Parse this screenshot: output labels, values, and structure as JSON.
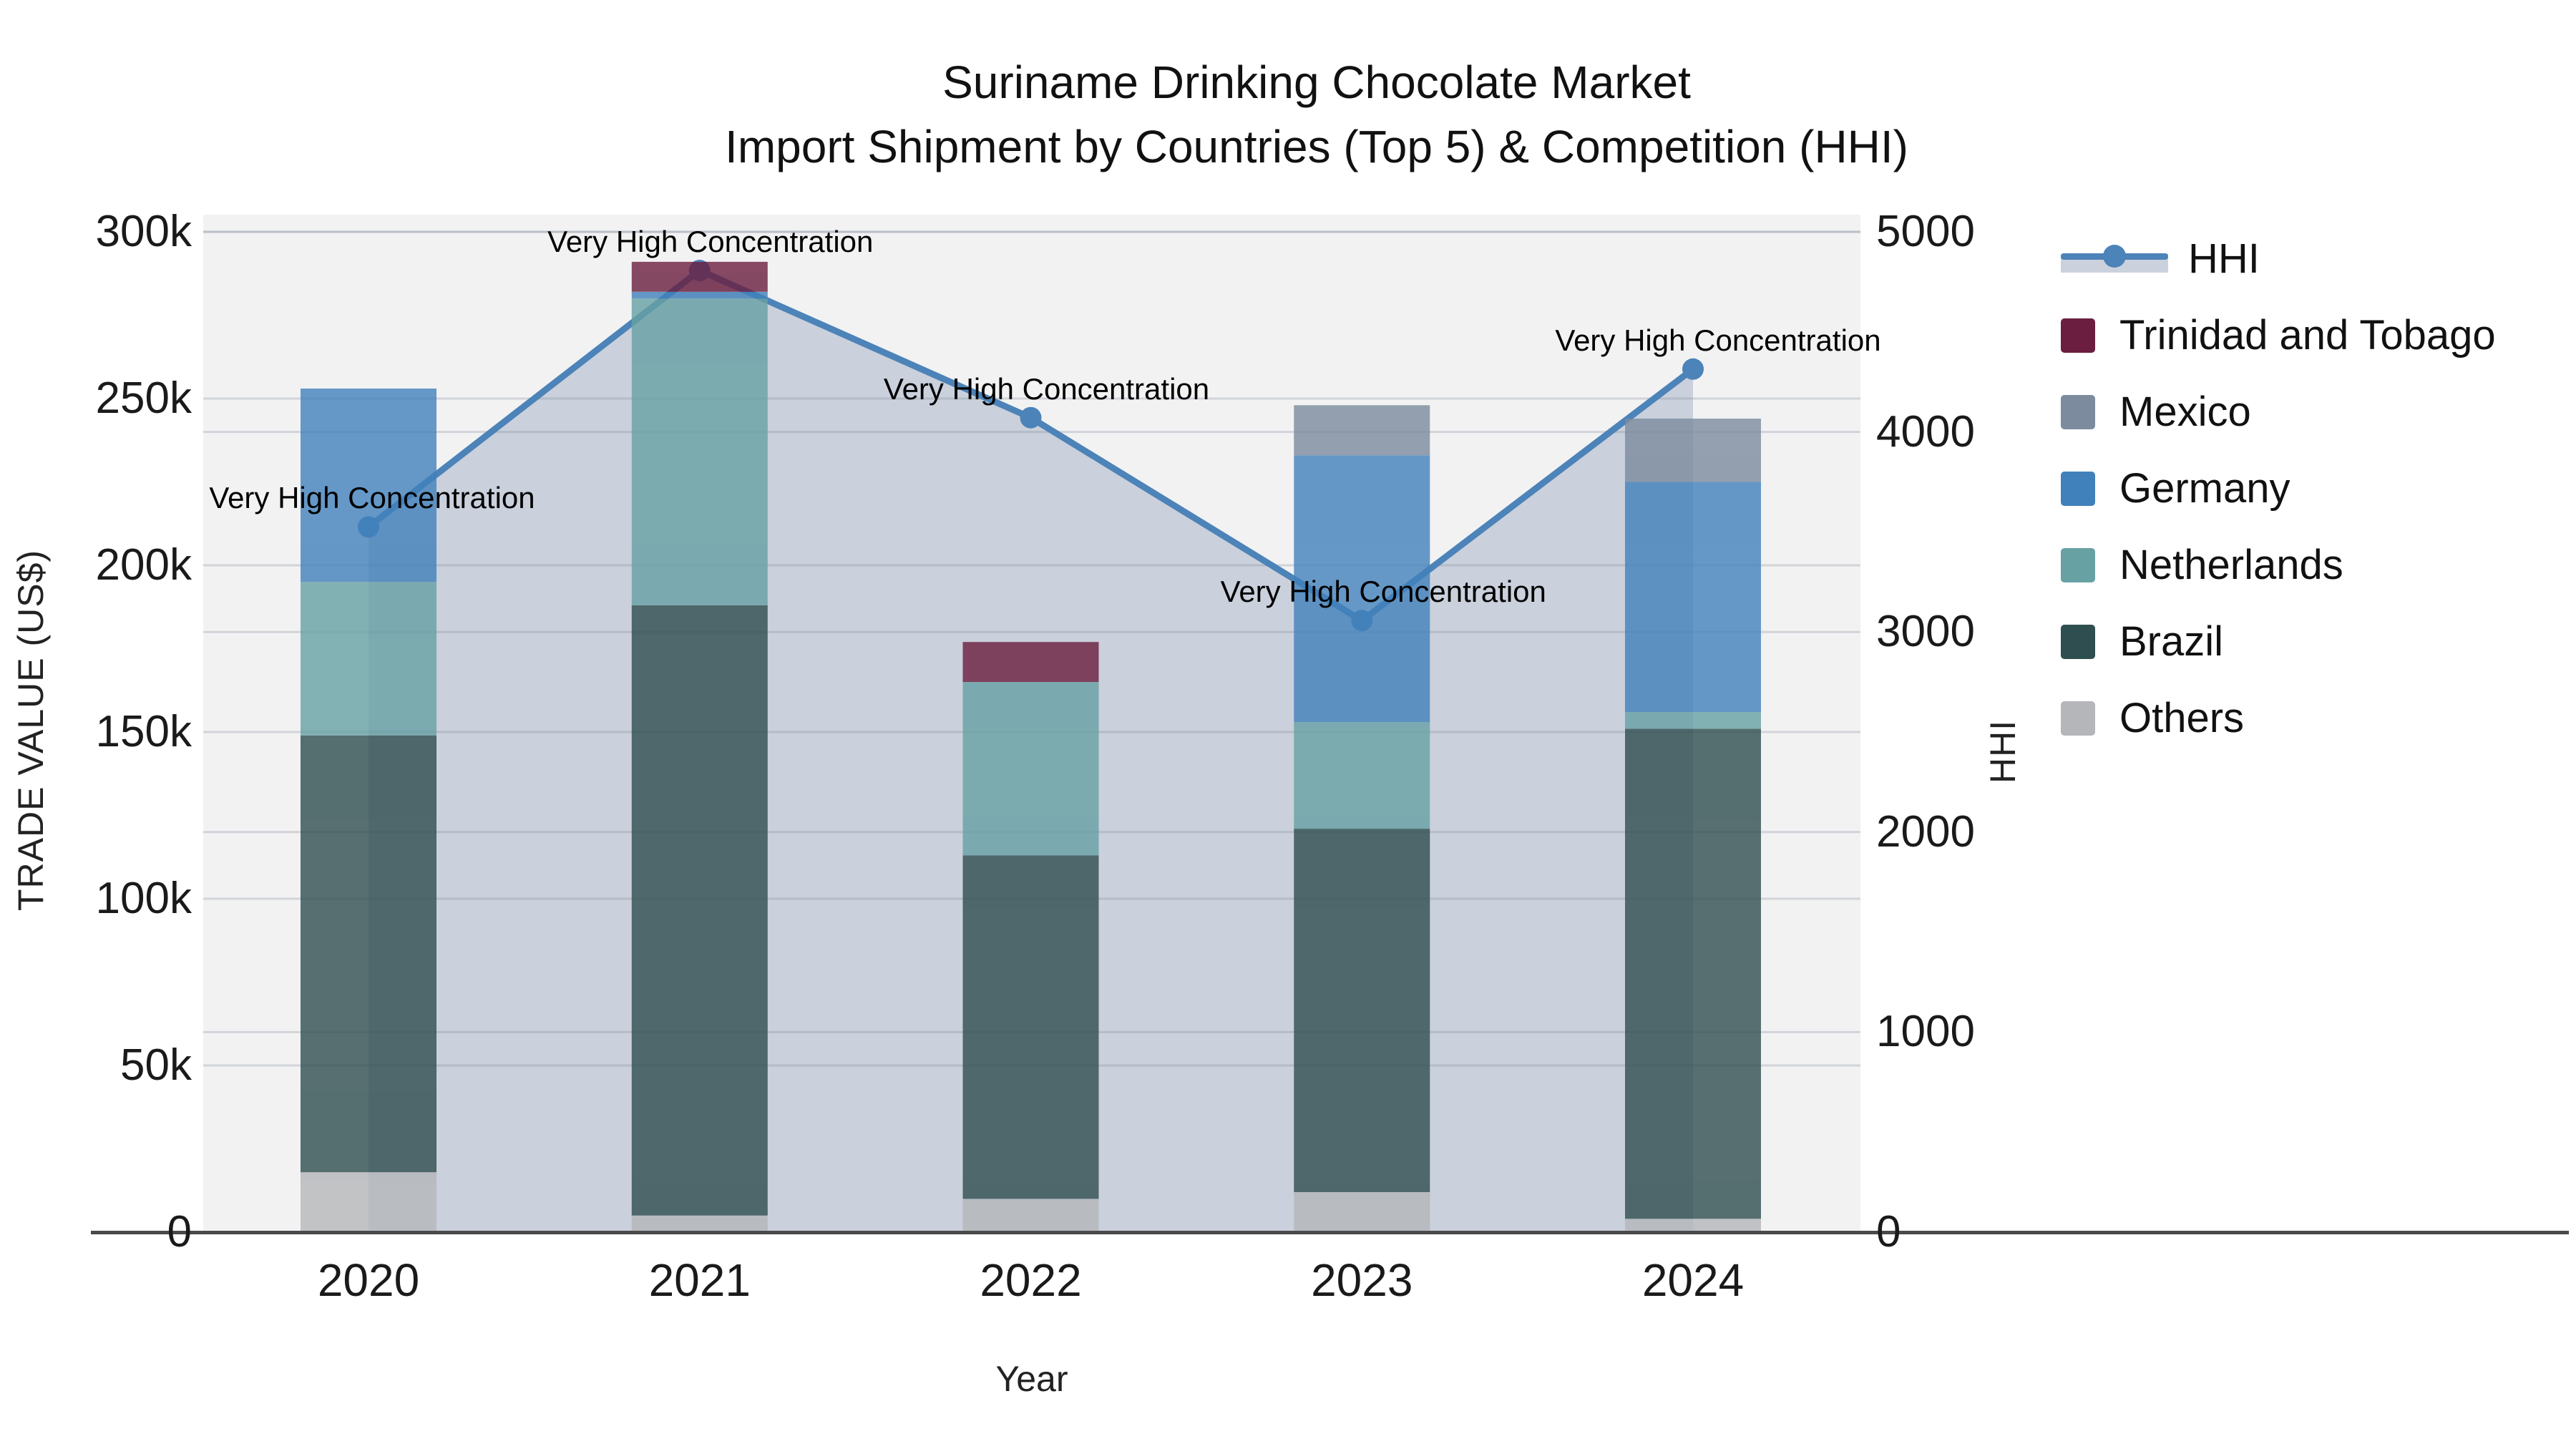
{
  "chart_data": {
    "type": "bar+line",
    "title_line1": "Suriname Drinking Chocolate Market",
    "title_line2": "Import Shipment by Countries (Top 5) & Competition (HHI)",
    "xlabel": "Year",
    "ylabel_left": "TRADE VALUE (US$)",
    "ylabel_right": "HHI",
    "categories": [
      "2020",
      "2021",
      "2022",
      "2023",
      "2024"
    ],
    "stack_series": [
      {
        "name": "Others",
        "color": "#b4b6b9",
        "values": [
          18000,
          5000,
          10000,
          12000,
          4000
        ]
      },
      {
        "name": "Brazil",
        "color": "#2f4e4f",
        "values": [
          131000,
          183000,
          103000,
          109000,
          147000
        ]
      },
      {
        "name": "Netherlands",
        "color": "#67a1a4",
        "values": [
          46000,
          92000,
          52000,
          32000,
          5000
        ]
      },
      {
        "name": "Germany",
        "color": "#4181bb",
        "values": [
          58000,
          2000,
          0,
          80000,
          69000
        ]
      },
      {
        "name": "Mexico",
        "color": "#7c8b9e",
        "values": [
          0,
          0,
          0,
          15000,
          19000
        ]
      },
      {
        "name": "Trinidad and Tobago",
        "color": "#6b1e3f",
        "values": [
          0,
          9000,
          12000,
          0,
          0
        ]
      }
    ],
    "line_series": {
      "name": "HHI",
      "color": "#4c83b8",
      "values": [
        3525,
        4807,
        4071,
        3057,
        4314
      ]
    },
    "annotations": [
      "Very High Concentration",
      "Very High Concentration",
      "Very High Concentration",
      "Very High Concentration",
      "Very High Concentration"
    ],
    "annotation_dx": [
      5,
      15,
      22,
      30,
      35
    ],
    "annotation_dy": -40,
    "y_left_ticks": [
      "0",
      "50k",
      "100k",
      "150k",
      "200k",
      "250k",
      "300k"
    ],
    "y_left_tick_values": [
      0,
      50000,
      100000,
      150000,
      200000,
      250000,
      300000
    ],
    "y_left_max": 300000,
    "y_right_ticks": [
      "0",
      "1000",
      "2000",
      "3000",
      "4000",
      "5000"
    ],
    "y_right_tick_values": [
      0,
      1000,
      2000,
      3000,
      4000,
      5000
    ],
    "y_right_max": 5000,
    "legend_order": [
      "HHI",
      "Trinidad and Tobago",
      "Mexico",
      "Germany",
      "Netherlands",
      "Brazil",
      "Others"
    ],
    "colors": {
      "plot_background": "#f2f2f3",
      "area_fill": "#c7cdd9",
      "hhi_line": "#4c83b8",
      "gridline": "rgba(125,136,152,0.28)",
      "axis_line": "#4a4a4d"
    },
    "grid": "on",
    "legend_position": "right"
  }
}
